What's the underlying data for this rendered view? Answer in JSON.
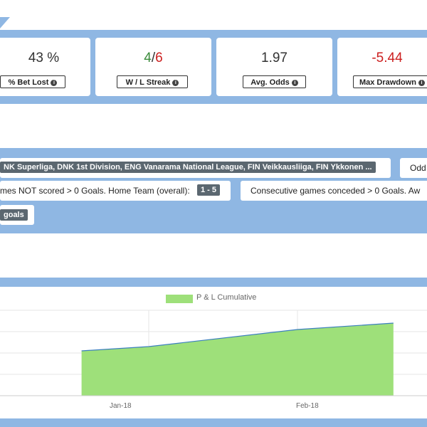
{
  "stats": [
    {
      "value": "43 %",
      "label": "% Bet Lost"
    },
    {
      "value_win": "4",
      "value_sep": "/",
      "value_loss": "6",
      "label": "W / L Streak"
    },
    {
      "value": "1.97",
      "label": "Avg. Odds"
    },
    {
      "value": "-5.44",
      "label": "Max Drawdown"
    }
  ],
  "filters": {
    "leagues": "NK Superliga, DNK 1st Division, ENG Vanarama National League, FIN Veikkausliiga, FIN Ykkonen ...",
    "odds_label": "Odd",
    "home_not_scored_text": "mes NOT scored > 0 Goals. Home Team (overall):",
    "home_not_scored_range": "1 - 5",
    "away_conceded_text": "Consecutive games conceded > 0 Goals. Aw",
    "goals_tag": "goals"
  },
  "colors": {
    "band": "#8fb7e3",
    "area_fill": "#9ee07a",
    "area_line": "#3c7fbf"
  },
  "chart_data": {
    "type": "area",
    "series": [
      {
        "name": "P & L Cumulative",
        "x": [
          "2017-12-18",
          "2018-01-01",
          "2018-02-01",
          "2018-02-21"
        ],
        "values": [
          0.55,
          0.65,
          1.05,
          1.2
        ]
      }
    ],
    "x_ticks": [
      "Jan-18",
      "Feb-18"
    ],
    "ylim": [
      -0.5,
      1.5
    ],
    "grid": true,
    "legend": "top-center"
  }
}
